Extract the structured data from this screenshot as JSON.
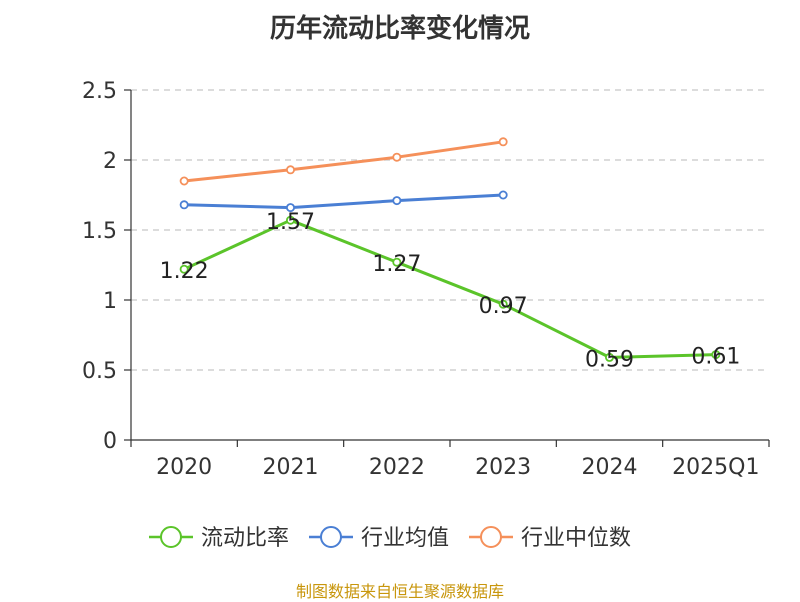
{
  "chart_data": {
    "type": "line",
    "title": "历年流动比率变化情况",
    "categories": [
      "2020",
      "2021",
      "2022",
      "2023",
      "2024",
      "2025Q1"
    ],
    "y_ticks": [
      "0",
      "0.5",
      "1",
      "1.5",
      "2",
      "2.5"
    ],
    "ylim": [
      0,
      2.5
    ],
    "grid": true,
    "legend_position": "bottom",
    "series": [
      {
        "name": "流动比率",
        "color": "#5bc42a",
        "values": [
          1.22,
          1.57,
          1.27,
          0.97,
          0.59,
          0.61
        ],
        "labels": [
          "1.22",
          "1.57",
          "1.27",
          "0.97",
          "0.59",
          "0.61"
        ]
      },
      {
        "name": "行业均值",
        "color": "#4a7fd4",
        "values": [
          1.68,
          1.66,
          1.71,
          1.75,
          null,
          null
        ]
      },
      {
        "name": "行业中位数",
        "color": "#f5905a",
        "values": [
          1.85,
          1.93,
          2.02,
          2.13,
          null,
          null
        ]
      }
    ]
  },
  "source": "制图数据来自恒生聚源数据库"
}
